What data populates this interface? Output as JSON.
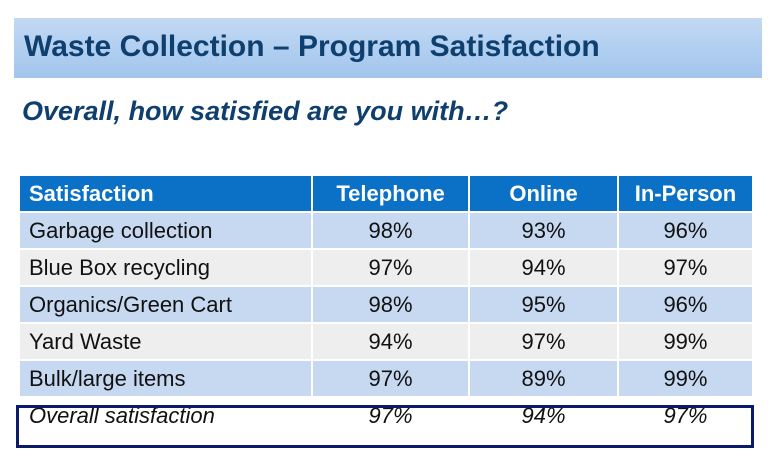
{
  "header": {
    "title": "Waste Collection – Program Satisfaction",
    "subtitle": "Overall, how satisfied are you with…?"
  },
  "table": {
    "columns": [
      "Satisfaction",
      "Telephone",
      "Online",
      "In-Person"
    ],
    "rows": [
      {
        "label": "Garbage collection",
        "values": [
          "98%",
          "93%",
          "96%"
        ]
      },
      {
        "label": "Blue Box recycling",
        "values": [
          "97%",
          "94%",
          "97%"
        ]
      },
      {
        "label": "Organics/Green Cart",
        "values": [
          "98%",
          "95%",
          "96%"
        ]
      },
      {
        "label": "Yard Waste",
        "values": [
          "94%",
          "97%",
          "99%"
        ]
      },
      {
        "label": "Bulk/large items",
        "values": [
          "97%",
          "89%",
          "99%"
        ]
      }
    ],
    "overall": {
      "label": "Overall satisfaction",
      "values": [
        "97%",
        "94%",
        "97%"
      ]
    }
  },
  "colors": {
    "header_fill": "#0a71c6",
    "row_blue": "#c6d9f1",
    "row_gray": "#eeeeee",
    "title_text": "#0e3f6e",
    "highlight_border": "#0c1a6a"
  }
}
